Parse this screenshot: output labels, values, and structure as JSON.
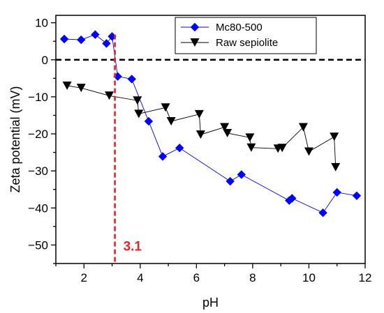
{
  "chart_data": {
    "type": "scatter",
    "xlabel": "pH",
    "ylabel": "Zeta potential (mV)",
    "xlim": [
      1,
      12
    ],
    "ylim": [
      -55,
      12
    ],
    "xticks": [
      2,
      4,
      6,
      8,
      10,
      12
    ],
    "yticks": [
      10,
      0,
      -10,
      -20,
      -30,
      -40,
      -50
    ],
    "grid": false,
    "legend_position": "top-right",
    "reference_line_y": 0,
    "series": [
      {
        "name": "Mc80-500",
        "color": "#0000ff",
        "marker": "diamond",
        "connected": true,
        "x": [
          1.3,
          1.9,
          2.4,
          2.8,
          3.0,
          3.2,
          3.7,
          4.3,
          4.8,
          5.4,
          7.2,
          7.6,
          9.3,
          9.4,
          10.5,
          11.0,
          11.7
        ],
        "y": [
          5.6,
          5.4,
          6.8,
          4.4,
          6.3,
          -4.5,
          -5.2,
          -16.6,
          -26.1,
          -23.8,
          -32.8,
          -31.0,
          -38.0,
          -37.4,
          -41.3,
          -35.8,
          -36.7
        ]
      },
      {
        "name": "Raw sepiolite",
        "color": "#000000",
        "marker": "triangle-down",
        "connected": true,
        "x": [
          1.4,
          1.9,
          2.9,
          3.9,
          3.95,
          4.9,
          5.1,
          6.1,
          6.15,
          7.0,
          7.1,
          7.9,
          7.95,
          8.9,
          9.05,
          9.8,
          10.0,
          10.9,
          10.95
        ],
        "y": [
          -7.0,
          -7.6,
          -9.7,
          -11.0,
          -14.6,
          -12.9,
          -16.6,
          -14.7,
          -20.2,
          -18.2,
          -19.8,
          -21.0,
          -23.7,
          -24.0,
          -23.8,
          -18.2,
          -24.8,
          -20.8,
          -29.0
        ]
      }
    ],
    "annotations": [
      {
        "text": "3.1",
        "x": 3.1,
        "color": "#e8222a",
        "style": "dashed-vertical-line"
      }
    ]
  }
}
